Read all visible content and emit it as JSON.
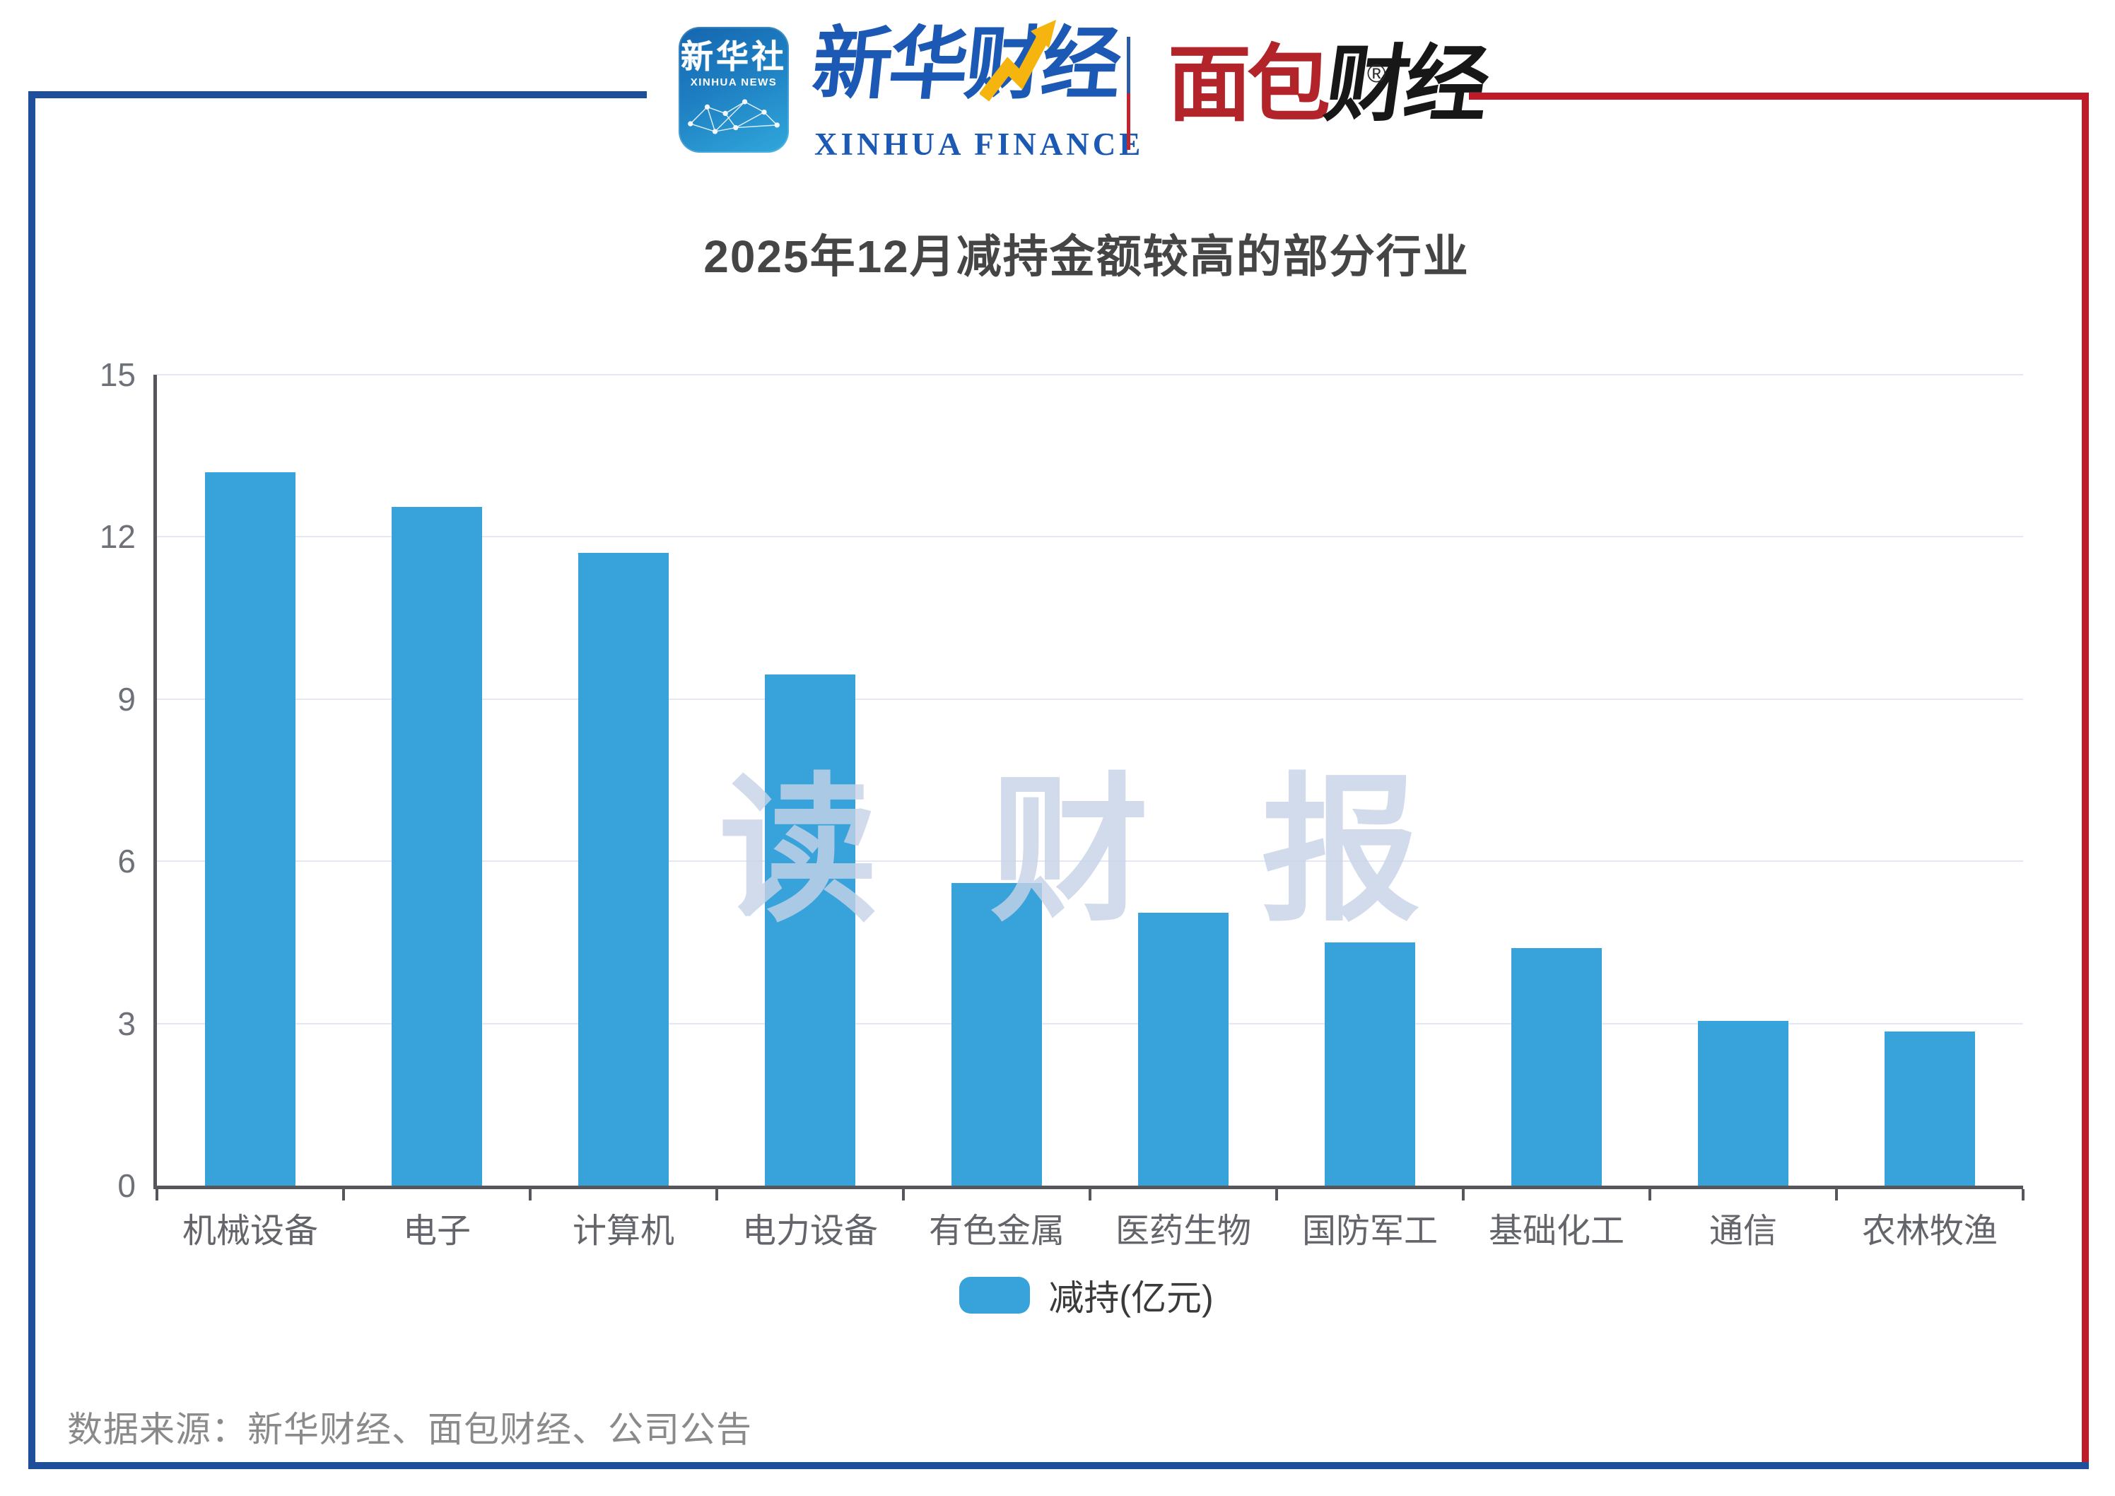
{
  "header": {
    "xinhua_news_icon": {
      "title": "新华社",
      "subtitle": "XINHUA NEWS"
    },
    "xinhua_finance": {
      "cn": "新华财经",
      "en": "XINHUA FINANCE"
    },
    "maibao_finance": {
      "cn_red": "面包",
      "cn_black": "财经",
      "registered_mark": "®"
    }
  },
  "chart_data": {
    "type": "bar",
    "title": "2025年12月减持金额较高的部分行业",
    "categories": [
      "机械设备",
      "电子",
      "计算机",
      "电力设备",
      "有色金属",
      "医药生物",
      "国防军工",
      "基础化工",
      "通信",
      "农林牧渔"
    ],
    "series": [
      {
        "name": "减持(亿元)",
        "values": [
          13.2,
          12.55,
          11.7,
          9.45,
          5.6,
          5.05,
          4.5,
          4.4,
          3.05,
          2.85
        ]
      }
    ],
    "xlabel": "",
    "ylabel": "",
    "ylim": [
      0,
      15
    ],
    "yticks": [
      0,
      3,
      6,
      9,
      12,
      15
    ],
    "grid": true,
    "legend_position": "bottom",
    "bar_color": "#38A2DA"
  },
  "legend": {
    "label": "减持(亿元)"
  },
  "watermark": {
    "text": "读财报"
  },
  "footer": {
    "source_text": "数据来源：新华财经、面包财经、公司公告"
  },
  "colors": {
    "bar": "#38A2DA",
    "frame_blue": "#1F4E9B",
    "frame_red": "#C0192A",
    "title_text": "#454545",
    "axis_line": "#55575C",
    "grid_line": "#E3E8F2",
    "tick_label": "#6E7179",
    "category_label": "#63656B",
    "legend_text": "#3A3A3A",
    "footer_text": "#8A8A8A",
    "watermark": "#C7D3E8",
    "logo_blue": "#1B59B5",
    "logo_red": "#B3232A",
    "arrow_yellow": "#F5B50E"
  }
}
